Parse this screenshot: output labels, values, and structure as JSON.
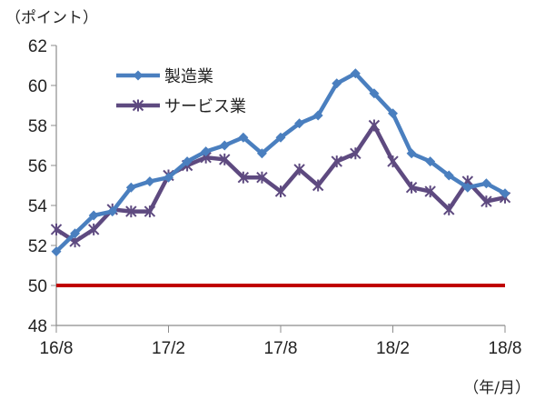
{
  "chart_data": {
    "type": "line",
    "ylabel": "（ポイント）",
    "xlabel": "（年/月）",
    "ylim": [
      48,
      62
    ],
    "yticks": [
      48,
      50,
      52,
      54,
      56,
      58,
      60,
      62
    ],
    "xtick_labels": [
      "16/8",
      "17/2",
      "17/8",
      "18/2",
      "18/8"
    ],
    "x": [
      "16/8",
      "16/9",
      "16/10",
      "16/11",
      "16/12",
      "17/1",
      "17/2",
      "17/3",
      "17/4",
      "17/5",
      "17/6",
      "17/7",
      "17/8",
      "17/9",
      "17/10",
      "17/11",
      "17/12",
      "18/1",
      "18/2",
      "18/3",
      "18/4",
      "18/5",
      "18/6",
      "18/7",
      "18/8"
    ],
    "series": [
      {
        "name": "製造業",
        "color": "#4a7fbf",
        "marker": "diamond",
        "values": [
          51.7,
          52.6,
          53.5,
          53.7,
          54.9,
          55.2,
          55.4,
          56.2,
          56.7,
          57.0,
          57.4,
          56.6,
          57.4,
          58.1,
          58.5,
          60.1,
          60.6,
          59.6,
          58.6,
          56.6,
          56.2,
          55.5,
          54.9,
          55.1,
          54.6
        ]
      },
      {
        "name": "サービス業",
        "color": "#5e4a80",
        "marker": "star",
        "values": [
          52.8,
          52.2,
          52.8,
          53.8,
          53.7,
          53.7,
          55.5,
          56.0,
          56.4,
          56.3,
          55.4,
          55.4,
          54.7,
          55.8,
          55.0,
          56.2,
          56.6,
          58.0,
          56.2,
          54.9,
          54.7,
          53.8,
          55.2,
          54.2,
          54.4
        ]
      }
    ],
    "reference_line": {
      "value": 50,
      "color": "#c00000"
    },
    "legend_position": "top-left inside"
  }
}
